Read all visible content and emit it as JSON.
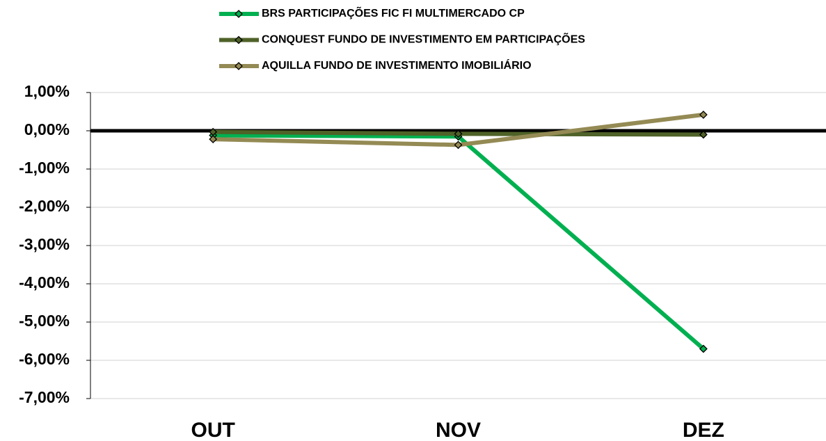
{
  "chart_data": {
    "type": "line",
    "categories": [
      "OUT",
      "NOV",
      "DEZ"
    ],
    "series": [
      {
        "name": "BRS PARTICIPAÇÕES FIC FI MULTIMERCADO CP",
        "color": "#00b050",
        "values": [
          -0.12,
          -0.15,
          -5.7
        ]
      },
      {
        "name": "CONQUEST FUNDO DE INVESTIMENTO EM PARTICIPAÇÕES",
        "color": "#4f6228",
        "values": [
          -0.03,
          -0.08,
          -0.1
        ]
      },
      {
        "name": "AQUILLA FUNDO DE INVESTIMENTO IMOBILIÁRIO",
        "color": "#948a54",
        "values": [
          -0.22,
          -0.37,
          0.42
        ]
      }
    ],
    "ylim": [
      -7,
      1
    ],
    "yticks": [
      {
        "value": 1,
        "label": "1,00%"
      },
      {
        "value": 0,
        "label": "0,00%"
      },
      {
        "value": -1,
        "label": "-1,00%"
      },
      {
        "value": -2,
        "label": "-2,00%"
      },
      {
        "value": -3,
        "label": "-3,00%"
      },
      {
        "value": -4,
        "label": "-4,00%"
      },
      {
        "value": -5,
        "label": "-5,00%"
      },
      {
        "value": -6,
        "label": "-6,00%"
      },
      {
        "value": -7,
        "label": "-7,00%"
      }
    ],
    "grid": true
  }
}
